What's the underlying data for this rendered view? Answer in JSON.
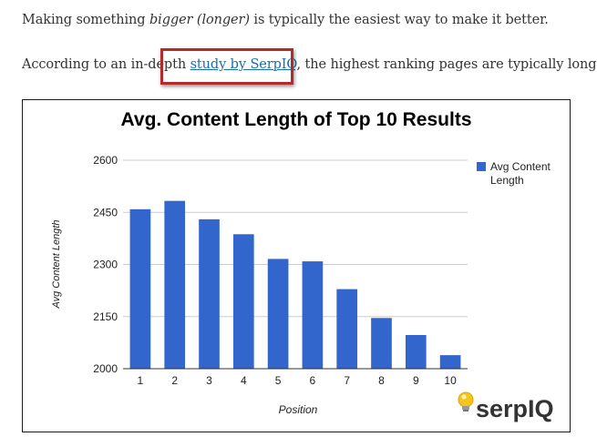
{
  "article": {
    "p1_a": "Making something ",
    "p1_em": "bigger (longer)",
    "p1_b": " is typically the easiest way to make it better.",
    "p2_a": "According to an in-depth ",
    "p2_link": "study by SerpIQ",
    "p2_b": ", the highest ranking pages are typically longer."
  },
  "colors": {
    "bar": "#3366cc",
    "highlight_box": "#b22a2a",
    "link": "#1a6db0"
  },
  "logo": {
    "text": "serpIQ",
    "icon": "lightbulb-icon"
  },
  "chart_data": {
    "type": "bar",
    "title": "Avg. Content Length of Top 10 Results",
    "xlabel": "Position",
    "ylabel": "Avg Content Length",
    "categories": [
      "1",
      "2",
      "3",
      "4",
      "5",
      "6",
      "7",
      "8",
      "9",
      "10"
    ],
    "series": [
      {
        "name": "Avg Content Length",
        "values": [
          2459,
          2483,
          2430,
          2387,
          2316,
          2309,
          2229,
          2146,
          2097,
          2039
        ]
      }
    ],
    "ylim": [
      2000,
      2600
    ],
    "yticks": [
      "2000",
      "2150",
      "2300",
      "2450",
      "2600"
    ],
    "grid": true,
    "legend": "right"
  }
}
